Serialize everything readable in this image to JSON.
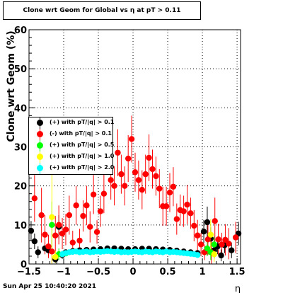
{
  "chart_data": {
    "type": "scatter",
    "title": "Clone wrt Geom for Global vs  η at pT > 0.11",
    "xlabel": "η",
    "ylabel": "Clone wrt Geom (%)",
    "xlim": [
      -1.5,
      1.55
    ],
    "ylim": [
      0,
      60
    ],
    "xticks": [
      -1.5,
      -1,
      -0.5,
      0,
      0.5,
      1,
      1.5
    ],
    "xtick_labels": [
      "−1.5",
      "−1",
      "−0.5",
      "0",
      "0.5",
      "1",
      "1.5"
    ],
    "yticks": [
      0,
      10,
      20,
      30,
      40,
      50,
      60
    ],
    "ytick_labels": [
      "0",
      "10",
      "20",
      "30",
      "40",
      "50",
      "60"
    ],
    "grid": true,
    "legend_placement": "left-middle",
    "series": [
      {
        "name": "(+) with pT/|q| > 0.1",
        "color": "#000000",
        "points": [
          {
            "x": -1.47,
            "y": 8.5,
            "err": 2.5
          },
          {
            "x": -1.42,
            "y": 5.8,
            "err": 2.0
          },
          {
            "x": -1.37,
            "y": 3.0,
            "err": 1.5
          },
          {
            "x": -1.27,
            "y": 4.0,
            "err": 1.5
          },
          {
            "x": -1.22,
            "y": 3.5,
            "err": 1.5
          },
          {
            "x": -1.12,
            "y": 1.2,
            "err": 1.0
          },
          {
            "x": -1.07,
            "y": 9.5,
            "err": 3.0
          },
          {
            "x": -1.02,
            "y": 2.3,
            "err": 1.0
          },
          {
            "x": -0.97,
            "y": 3.0,
            "err": 0.5
          },
          {
            "x": -0.87,
            "y": 3.3,
            "err": 0.5
          },
          {
            "x": -0.77,
            "y": 3.5,
            "err": 0.5
          },
          {
            "x": -0.67,
            "y": 3.6,
            "err": 0.5
          },
          {
            "x": -0.57,
            "y": 3.7,
            "err": 0.5
          },
          {
            "x": -0.47,
            "y": 3.8,
            "err": 0.5
          },
          {
            "x": -0.37,
            "y": 4.0,
            "err": 0.5
          },
          {
            "x": -0.27,
            "y": 4.0,
            "err": 0.5
          },
          {
            "x": -0.17,
            "y": 3.9,
            "err": 0.5
          },
          {
            "x": -0.07,
            "y": 3.8,
            "err": 0.5
          },
          {
            "x": 0.03,
            "y": 3.8,
            "err": 0.5
          },
          {
            "x": 0.13,
            "y": 3.9,
            "err": 0.5
          },
          {
            "x": 0.23,
            "y": 3.9,
            "err": 0.5
          },
          {
            "x": 0.33,
            "y": 3.8,
            "err": 0.5
          },
          {
            "x": 0.43,
            "y": 3.7,
            "err": 0.5
          },
          {
            "x": 0.53,
            "y": 3.6,
            "err": 0.5
          },
          {
            "x": 0.63,
            "y": 3.4,
            "err": 0.5
          },
          {
            "x": 0.73,
            "y": 3.2,
            "err": 0.5
          },
          {
            "x": 0.83,
            "y": 3.0,
            "err": 0.5
          },
          {
            "x": 0.93,
            "y": 2.8,
            "err": 0.5
          },
          {
            "x": 1.02,
            "y": 8.3,
            "err": 3.0
          },
          {
            "x": 1.07,
            "y": 10.7,
            "err": 4.0
          },
          {
            "x": 1.12,
            "y": 6.5,
            "err": 3.0
          },
          {
            "x": 1.17,
            "y": 3.5,
            "err": 2.0
          },
          {
            "x": 1.22,
            "y": 4.5,
            "err": 2.0
          },
          {
            "x": 1.27,
            "y": 2.2,
            "err": 1.5
          },
          {
            "x": 1.32,
            "y": 4.8,
            "err": 2.0
          },
          {
            "x": 1.42,
            "y": 3.5,
            "err": 2.0
          },
          {
            "x": 1.52,
            "y": 7.8,
            "err": 3.0
          }
        ]
      },
      {
        "name": "(-) with pT/|q| > 0.1",
        "color": "#ff0000",
        "points": [
          {
            "x": -1.42,
            "y": 16.8,
            "err": 6.0
          },
          {
            "x": -1.32,
            "y": 12.5,
            "err": 7.0
          },
          {
            "x": -1.27,
            "y": 7.5,
            "err": 5.0
          },
          {
            "x": -1.22,
            "y": 4.5,
            "err": 3.0
          },
          {
            "x": -1.17,
            "y": 3.2,
            "err": 3.0
          },
          {
            "x": -1.12,
            "y": 7.3,
            "err": 5.0
          },
          {
            "x": -1.07,
            "y": 10.0,
            "err": 5.0
          },
          {
            "x": -1.02,
            "y": 7.8,
            "err": 4.0
          },
          {
            "x": -0.97,
            "y": 8.8,
            "err": 4.0
          },
          {
            "x": -0.92,
            "y": 12.5,
            "err": 5.0
          },
          {
            "x": -0.87,
            "y": 5.5,
            "err": 3.0
          },
          {
            "x": -0.82,
            "y": 15.0,
            "err": 5.0
          },
          {
            "x": -0.77,
            "y": 6.0,
            "err": 3.0
          },
          {
            "x": -0.72,
            "y": 12.3,
            "err": 4.0
          },
          {
            "x": -0.67,
            "y": 15.0,
            "err": 5.0
          },
          {
            "x": -0.62,
            "y": 9.5,
            "err": 4.0
          },
          {
            "x": -0.57,
            "y": 17.8,
            "err": 5.0
          },
          {
            "x": -0.52,
            "y": 8.2,
            "err": 3.0
          },
          {
            "x": -0.47,
            "y": 13.5,
            "err": 4.0
          },
          {
            "x": -0.42,
            "y": 18.0,
            "err": 5.0
          },
          {
            "x": -0.32,
            "y": 21.5,
            "err": 5.0
          },
          {
            "x": -0.27,
            "y": 20.0,
            "err": 5.0
          },
          {
            "x": -0.22,
            "y": 28.5,
            "err": 6.0
          },
          {
            "x": -0.17,
            "y": 23.0,
            "err": 5.0
          },
          {
            "x": -0.12,
            "y": 20.0,
            "err": 5.0
          },
          {
            "x": -0.07,
            "y": 27.0,
            "err": 6.0
          },
          {
            "x": -0.02,
            "y": 32.0,
            "err": 6.0
          },
          {
            "x": 0.03,
            "y": 23.5,
            "err": 5.0
          },
          {
            "x": 0.08,
            "y": 21.5,
            "err": 5.0
          },
          {
            "x": 0.13,
            "y": 19.0,
            "err": 5.0
          },
          {
            "x": 0.18,
            "y": 23.0,
            "err": 5.0
          },
          {
            "x": 0.23,
            "y": 27.2,
            "err": 6.0
          },
          {
            "x": 0.28,
            "y": 24.3,
            "err": 5.0
          },
          {
            "x": 0.33,
            "y": 22.5,
            "err": 5.0
          },
          {
            "x": 0.38,
            "y": 19.3,
            "err": 5.0
          },
          {
            "x": 0.43,
            "y": 14.8,
            "err": 5.0
          },
          {
            "x": 0.48,
            "y": 14.8,
            "err": 5.0
          },
          {
            "x": 0.53,
            "y": 18.3,
            "err": 5.0
          },
          {
            "x": 0.58,
            "y": 19.8,
            "err": 5.0
          },
          {
            "x": 0.63,
            "y": 11.5,
            "err": 4.0
          },
          {
            "x": 0.68,
            "y": 13.8,
            "err": 4.0
          },
          {
            "x": 0.73,
            "y": 13.5,
            "err": 4.0
          },
          {
            "x": 0.78,
            "y": 15.2,
            "err": 5.0
          },
          {
            "x": 0.83,
            "y": 13.0,
            "err": 4.0
          },
          {
            "x": 0.88,
            "y": 9.8,
            "err": 4.0
          },
          {
            "x": 0.93,
            "y": 7.3,
            "err": 4.0
          },
          {
            "x": 0.98,
            "y": 5.0,
            "err": 3.0
          },
          {
            "x": 1.03,
            "y": 3.0,
            "err": 2.0
          },
          {
            "x": 1.08,
            "y": 6.3,
            "err": 4.0
          },
          {
            "x": 1.13,
            "y": 3.0,
            "err": 3.0
          },
          {
            "x": 1.18,
            "y": 11.0,
            "err": 6.0
          },
          {
            "x": 1.23,
            "y": 6.3,
            "err": 4.0
          },
          {
            "x": 1.28,
            "y": 5.0,
            "err": 3.0
          },
          {
            "x": 1.33,
            "y": 6.2,
            "err": 4.0
          },
          {
            "x": 1.38,
            "y": 5.2,
            "err": 4.0
          },
          {
            "x": 1.48,
            "y": 6.8,
            "err": 4.0
          }
        ]
      },
      {
        "name": "(+) with pT/|q| > 0.5",
        "color": "#00ff00",
        "points": [
          {
            "x": -1.17,
            "y": 10.0,
            "err": 6.0
          },
          {
            "x": -1.07,
            "y": 2.5,
            "err": 1.5
          },
          {
            "x": -0.97,
            "y": 2.7,
            "err": 0.5
          },
          {
            "x": 1.07,
            "y": 4.0,
            "err": 2.0
          },
          {
            "x": 1.12,
            "y": 3.0,
            "err": 2.0
          },
          {
            "x": 1.17,
            "y": 5.0,
            "err": 2.0
          }
        ]
      },
      {
        "name": "(+) with pT/|q| > 1.0",
        "color": "#ffff00",
        "points": [
          {
            "x": -1.17,
            "y": 12.0,
            "err": 12.0
          },
          {
            "x": -1.12,
            "y": 1.8,
            "err": 1.5
          },
          {
            "x": 1.12,
            "y": 7.5,
            "err": 4.0
          },
          {
            "x": 1.17,
            "y": 2.5,
            "err": 2.0
          }
        ]
      },
      {
        "name": "(+) with pT/|q| > 2.0",
        "color": "#00ffff",
        "points": [
          {
            "x": -1.02,
            "y": 2.5,
            "err": 1.0
          },
          {
            "x": -0.97,
            "y": 2.8,
            "err": 0.4
          },
          {
            "x": -0.92,
            "y": 3.0,
            "err": 0.4
          },
          {
            "x": -0.87,
            "y": 3.1,
            "err": 0.4
          },
          {
            "x": -0.82,
            "y": 3.2,
            "err": 0.4
          },
          {
            "x": -0.77,
            "y": 3.0,
            "err": 0.4
          },
          {
            "x": -0.72,
            "y": 3.1,
            "err": 0.4
          },
          {
            "x": -0.67,
            "y": 3.2,
            "err": 0.4
          },
          {
            "x": -0.62,
            "y": 3.0,
            "err": 0.4
          },
          {
            "x": -0.57,
            "y": 3.1,
            "err": 0.4
          },
          {
            "x": -0.52,
            "y": 3.2,
            "err": 0.4
          },
          {
            "x": -0.47,
            "y": 3.1,
            "err": 0.4
          },
          {
            "x": -0.42,
            "y": 3.2,
            "err": 0.4
          },
          {
            "x": -0.37,
            "y": 3.3,
            "err": 0.4
          },
          {
            "x": -0.32,
            "y": 3.2,
            "err": 0.4
          },
          {
            "x": -0.27,
            "y": 3.1,
            "err": 0.4
          },
          {
            "x": -0.22,
            "y": 3.2,
            "err": 0.4
          },
          {
            "x": -0.17,
            "y": 3.0,
            "err": 0.4
          },
          {
            "x": -0.12,
            "y": 3.1,
            "err": 0.4
          },
          {
            "x": -0.07,
            "y": 3.0,
            "err": 0.4
          },
          {
            "x": -0.02,
            "y": 3.1,
            "err": 0.4
          },
          {
            "x": 0.03,
            "y": 3.2,
            "err": 0.4
          },
          {
            "x": 0.08,
            "y": 3.1,
            "err": 0.4
          },
          {
            "x": 0.13,
            "y": 3.0,
            "err": 0.4
          },
          {
            "x": 0.18,
            "y": 3.2,
            "err": 0.4
          },
          {
            "x": 0.23,
            "y": 3.1,
            "err": 0.4
          },
          {
            "x": 0.28,
            "y": 3.0,
            "err": 0.4
          },
          {
            "x": 0.33,
            "y": 3.2,
            "err": 0.4
          },
          {
            "x": 0.38,
            "y": 3.1,
            "err": 0.4
          },
          {
            "x": 0.43,
            "y": 3.0,
            "err": 0.4
          },
          {
            "x": 0.48,
            "y": 3.2,
            "err": 0.4
          },
          {
            "x": 0.53,
            "y": 3.0,
            "err": 0.4
          },
          {
            "x": 0.58,
            "y": 3.1,
            "err": 0.4
          },
          {
            "x": 0.63,
            "y": 3.0,
            "err": 0.4
          },
          {
            "x": 0.68,
            "y": 2.9,
            "err": 0.4
          },
          {
            "x": 0.73,
            "y": 2.8,
            "err": 0.4
          },
          {
            "x": 0.78,
            "y": 2.7,
            "err": 0.4
          },
          {
            "x": 0.83,
            "y": 2.6,
            "err": 0.4
          },
          {
            "x": 0.88,
            "y": 2.5,
            "err": 0.4
          },
          {
            "x": 0.93,
            "y": 2.3,
            "err": 0.4
          }
        ]
      }
    ]
  },
  "footer": {
    "timestamp": "Sun Apr 25 10:40:20 2021"
  }
}
